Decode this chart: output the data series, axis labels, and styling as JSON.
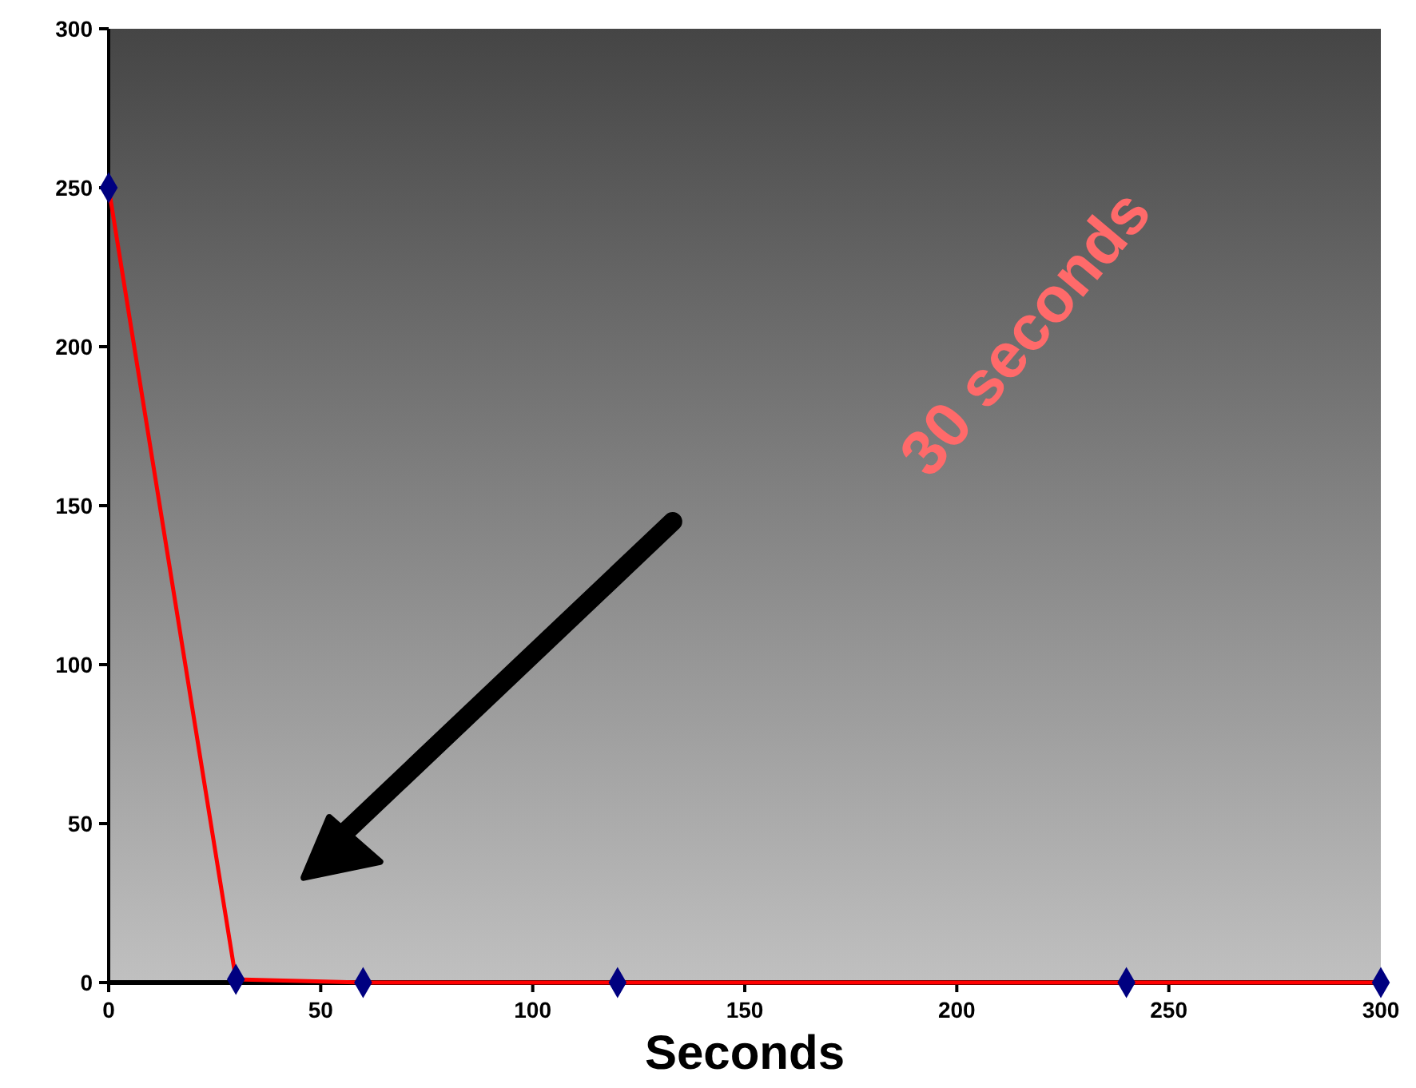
{
  "chart_data": {
    "type": "line",
    "xlabel": "Seconds",
    "x": [
      0,
      30,
      60,
      120,
      240,
      300
    ],
    "series": [
      {
        "color": "#ff0000",
        "values": [
          250,
          1,
          0,
          0,
          0,
          0
        ]
      }
    ],
    "xlim": [
      0,
      300
    ],
    "xticks": [
      0,
      50,
      100,
      150,
      200,
      250,
      300
    ],
    "ylim": [
      0,
      300
    ],
    "yticks": [
      0,
      50,
      100,
      150,
      200,
      250,
      300
    ],
    "marker": "diamond",
    "line_style": "solid",
    "annotations": [
      "30 seconds"
    ]
  }
}
